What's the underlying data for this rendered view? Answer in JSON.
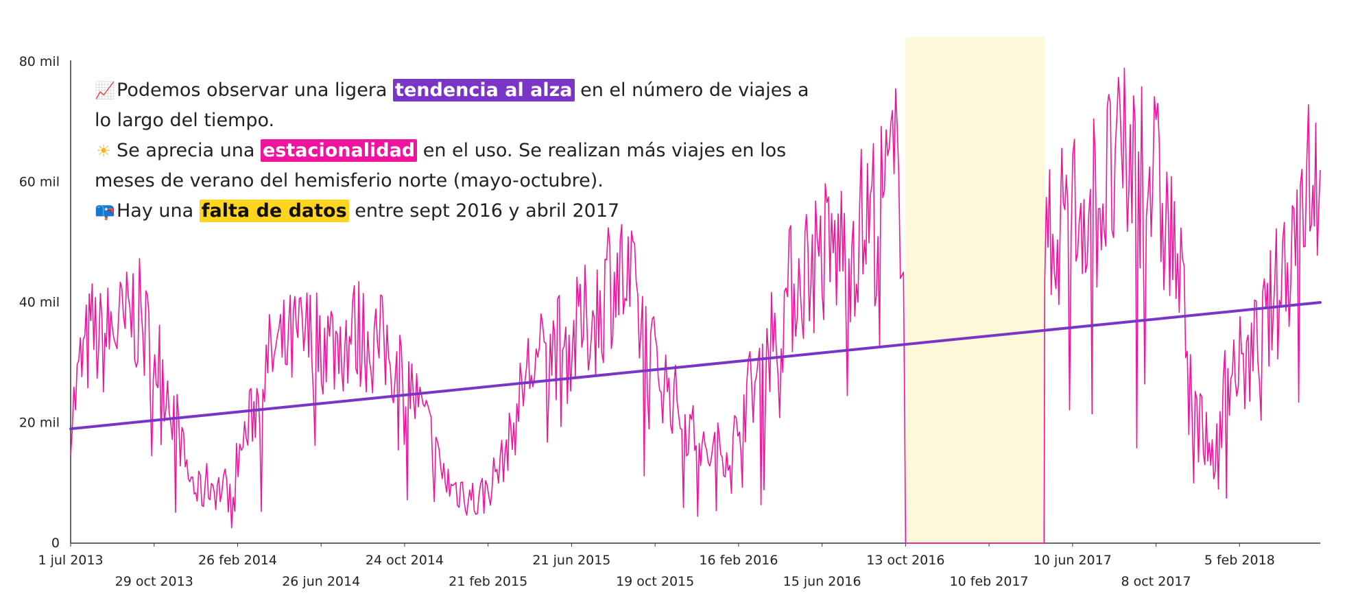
{
  "chart_data": {
    "type": "line",
    "title": "",
    "xlabel": "",
    "ylabel": "",
    "x_range": [
      "2013-07-01",
      "2018-06-01"
    ],
    "ylim": [
      0,
      80000
    ],
    "y_ticks": [
      {
        "value": 0,
        "label": "0"
      },
      {
        "value": 20000,
        "label": "20 mil"
      },
      {
        "value": 40000,
        "label": "40 mil"
      },
      {
        "value": 60000,
        "label": "60 mil"
      },
      {
        "value": 80000,
        "label": "80 mil"
      }
    ],
    "x_ticks": [
      {
        "date": "2013-07-01",
        "label": "1 jul 2013",
        "row": 0
      },
      {
        "date": "2013-10-29",
        "label": "29 oct 2013",
        "row": 1
      },
      {
        "date": "2014-02-26",
        "label": "26 feb 2014",
        "row": 0
      },
      {
        "date": "2014-06-26",
        "label": "26 jun 2014",
        "row": 1
      },
      {
        "date": "2014-10-24",
        "label": "24 oct 2014",
        "row": 0
      },
      {
        "date": "2015-02-21",
        "label": "21 feb 2015",
        "row": 1
      },
      {
        "date": "2015-06-21",
        "label": "21 jun 2015",
        "row": 0
      },
      {
        "date": "2015-10-19",
        "label": "19 oct 2015",
        "row": 1
      },
      {
        "date": "2016-02-16",
        "label": "16 feb 2016",
        "row": 0
      },
      {
        "date": "2016-06-15",
        "label": "15 jun 2016",
        "row": 1
      },
      {
        "date": "2016-10-13",
        "label": "13 oct 2016",
        "row": 0
      },
      {
        "date": "2017-02-10",
        "label": "10 feb 2017",
        "row": 1
      },
      {
        "date": "2017-06-10",
        "label": "10 jun 2017",
        "row": 0
      },
      {
        "date": "2017-10-08",
        "label": "8 oct 2017",
        "row": 1
      },
      {
        "date": "2018-02-05",
        "label": "5 feb 2018",
        "row": 0
      }
    ],
    "series": [
      {
        "type": "line",
        "color": "#f0139d",
        "points": [
          [
            "2013-07-01",
            20000
          ],
          [
            "2013-07-15",
            29000
          ],
          [
            "2013-08-01",
            35000
          ],
          [
            "2013-08-15",
            33000
          ],
          [
            "2013-09-01",
            36000
          ],
          [
            "2013-09-15",
            35000
          ],
          [
            "2013-10-01",
            39000
          ],
          [
            "2013-10-15",
            35000
          ],
          [
            "2013-11-01",
            31000
          ],
          [
            "2013-11-15",
            27000
          ],
          [
            "2013-12-01",
            20000
          ],
          [
            "2013-12-15",
            12000
          ],
          [
            "2014-01-01",
            8000
          ],
          [
            "2014-01-15",
            10000
          ],
          [
            "2014-02-01",
            9000
          ],
          [
            "2014-02-15",
            9000
          ],
          [
            "2014-03-01",
            15000
          ],
          [
            "2014-03-15",
            20000
          ],
          [
            "2014-04-01",
            26000
          ],
          [
            "2014-04-15",
            31000
          ],
          [
            "2014-05-01",
            32000
          ],
          [
            "2014-05-15",
            33000
          ],
          [
            "2014-06-01",
            34000
          ],
          [
            "2014-06-15",
            34000
          ],
          [
            "2014-07-01",
            34000
          ],
          [
            "2014-07-15",
            33000
          ],
          [
            "2014-08-01",
            34000
          ],
          [
            "2014-08-15",
            35000
          ],
          [
            "2014-09-01",
            34000
          ],
          [
            "2014-09-15",
            33000
          ],
          [
            "2014-10-01",
            32000
          ],
          [
            "2014-10-15",
            29000
          ],
          [
            "2014-11-01",
            26000
          ],
          [
            "2014-11-15",
            22000
          ],
          [
            "2014-12-01",
            18000
          ],
          [
            "2014-12-15",
            12000
          ],
          [
            "2015-01-01",
            9000
          ],
          [
            "2015-01-15",
            9000
          ],
          [
            "2015-02-01",
            7000
          ],
          [
            "2015-02-15",
            8000
          ],
          [
            "2015-03-01",
            11000
          ],
          [
            "2015-03-15",
            14000
          ],
          [
            "2015-04-01",
            20000
          ],
          [
            "2015-04-15",
            28000
          ],
          [
            "2015-05-01",
            30000
          ],
          [
            "2015-05-15",
            31000
          ],
          [
            "2015-06-01",
            33000
          ],
          [
            "2015-06-15",
            32000
          ],
          [
            "2015-07-01",
            35000
          ],
          [
            "2015-07-15",
            37000
          ],
          [
            "2015-08-01",
            39000
          ],
          [
            "2015-08-15",
            45000
          ],
          [
            "2015-09-01",
            44000
          ],
          [
            "2015-09-15",
            41000
          ],
          [
            "2015-10-01",
            36000
          ],
          [
            "2015-10-15",
            31000
          ],
          [
            "2015-11-01",
            27000
          ],
          [
            "2015-11-15",
            24000
          ],
          [
            "2015-12-01",
            20000
          ],
          [
            "2015-12-15",
            18000
          ],
          [
            "2016-01-01",
            14000
          ],
          [
            "2016-01-15",
            16000
          ],
          [
            "2016-02-01",
            15000
          ],
          [
            "2016-02-15",
            19000
          ],
          [
            "2016-03-01",
            25000
          ],
          [
            "2016-03-15",
            28000
          ],
          [
            "2016-04-01",
            34000
          ],
          [
            "2016-04-15",
            37000
          ],
          [
            "2016-05-01",
            42000
          ],
          [
            "2016-05-15",
            45000
          ],
          [
            "2016-06-01",
            47000
          ],
          [
            "2016-06-15",
            48000
          ],
          [
            "2016-07-01",
            48000
          ],
          [
            "2016-07-15",
            49000
          ],
          [
            "2016-08-01",
            51000
          ],
          [
            "2016-08-15",
            53000
          ],
          [
            "2016-09-01",
            55000
          ],
          [
            "2016-09-15",
            58000
          ],
          [
            "2016-10-01",
            61000
          ],
          [
            "2016-10-10",
            58000
          ],
          [
            "2016-10-13",
            0
          ],
          [
            "2017-04-30",
            0
          ],
          [
            "2017-05-01",
            46000
          ],
          [
            "2017-05-15",
            52000
          ],
          [
            "2017-06-01",
            56000
          ],
          [
            "2017-06-15",
            55000
          ],
          [
            "2017-07-01",
            58000
          ],
          [
            "2017-07-15",
            57000
          ],
          [
            "2017-08-01",
            60000
          ],
          [
            "2017-08-15",
            61000
          ],
          [
            "2017-09-01",
            63000
          ],
          [
            "2017-09-15",
            63000
          ],
          [
            "2017-10-01",
            62000
          ],
          [
            "2017-10-15",
            56000
          ],
          [
            "2017-11-01",
            50000
          ],
          [
            "2017-11-15",
            40000
          ],
          [
            "2017-12-01",
            28000
          ],
          [
            "2017-12-15",
            18000
          ],
          [
            "2018-01-01",
            14000
          ],
          [
            "2018-01-15",
            26000
          ],
          [
            "2018-02-01",
            30000
          ],
          [
            "2018-02-15",
            29000
          ],
          [
            "2018-03-01",
            33000
          ],
          [
            "2018-03-15",
            36000
          ],
          [
            "2018-04-01",
            42000
          ],
          [
            "2018-04-15",
            48000
          ],
          [
            "2018-05-01",
            55000
          ],
          [
            "2018-05-15",
            64000
          ],
          [
            "2018-06-01",
            62000
          ]
        ]
      },
      {
        "type": "trend",
        "color": "#7b35c6",
        "points": [
          [
            "2013-07-01",
            19000
          ],
          [
            "2018-06-01",
            40000
          ]
        ]
      }
    ],
    "gap_band": {
      "start": "2016-10-13",
      "end": "2017-05-01",
      "color": "#fdf8da"
    },
    "grid": false
  },
  "annotations": [
    {
      "icon": "chart-increasing-icon",
      "glyph": "📈",
      "before": "Podemos observar una ligera",
      "highlight": "tendencia al alza",
      "after": "en el número de viajes a",
      "continuation": "lo largo del tiempo.",
      "hl_bg": "#7b35c6",
      "hl_fg": "#ffffff"
    },
    {
      "icon": "sun-icon",
      "glyph": "☀",
      "before": "Se aprecia una",
      "highlight": "estacionalidad",
      "after": "en el uso. Se realizan más viajes en los",
      "continuation": "meses de verano del hemisferio norte (mayo-octubre).",
      "hl_bg": "#f0139d",
      "hl_fg": "#ffffff"
    },
    {
      "icon": "mailbox-icon",
      "glyph": "📪",
      "before": "Hay una",
      "highlight": "falta de datos",
      "after": "entre sept 2016 y abril 2017",
      "continuation": "",
      "hl_bg": "#ffd51f",
      "hl_fg": "#111111"
    }
  ]
}
